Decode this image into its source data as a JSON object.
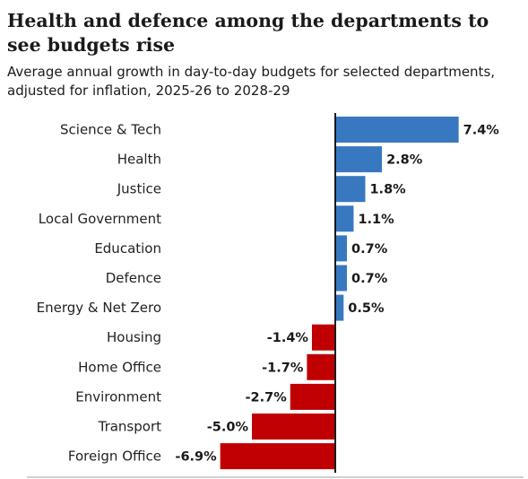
{
  "chart_data": {
    "type": "bar",
    "orientation": "horizontal",
    "title": "Health and defence among the departments to see budgets rise",
    "subtitle": "Average annual growth in day-to-day budgets for selected departments, adjusted for inflation, 2025-26 to 2028-29",
    "categories": [
      "Science & Tech",
      "Health",
      "Justice",
      "Local Government",
      "Education",
      "Defence",
      "Energy & Net Zero",
      "Housing",
      "Home Office",
      "Environment",
      "Transport",
      "Foreign Office"
    ],
    "values": [
      7.4,
      2.8,
      1.8,
      1.1,
      0.7,
      0.7,
      0.5,
      -1.4,
      -1.7,
      -2.7,
      -5.0,
      -6.9
    ],
    "value_labels": [
      "7.4%",
      "2.8%",
      "1.8%",
      "1.1%",
      "0.7%",
      "0.7%",
      "0.5%",
      "-1.4%",
      "-1.7%",
      "-2.7%",
      "-5.0%",
      "-6.9%"
    ],
    "xlim": [
      -6.9,
      7.4
    ],
    "colors": {
      "positive": "#3878c0",
      "negative": "#c00000",
      "axis": "#1a1a1a"
    }
  }
}
